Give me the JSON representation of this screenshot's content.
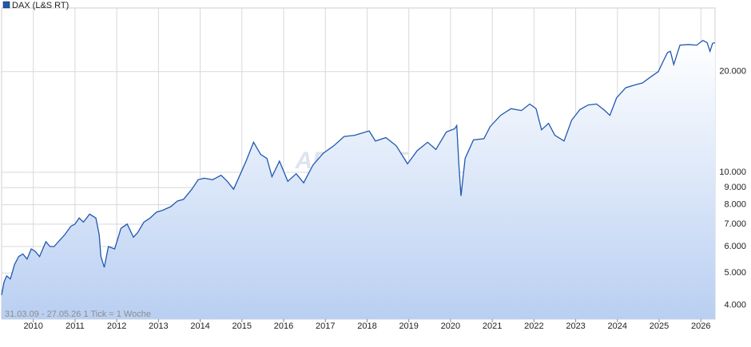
{
  "chart_data": {
    "type": "line",
    "legend": "DAX (L&S RT)",
    "watermark": "ARIVA.DE",
    "footnote": "31.03.09 - 27.05.26   1 Tick = 1 Woche",
    "log_scale": true,
    "grid": true,
    "legend_position": "top-left",
    "xlim": [
      2009.24,
      2026.34
    ],
    "xticks": [
      2010,
      2011,
      2012,
      2013,
      2014,
      2015,
      2016,
      2017,
      2018,
      2019,
      2020,
      2021,
      2022,
      2023,
      2024,
      2025,
      2026
    ],
    "ylim": [
      3640,
      31000
    ],
    "yticks": [
      {
        "value": 4000,
        "label": "4.000"
      },
      {
        "value": 5000,
        "label": "5.000"
      },
      {
        "value": 6000,
        "label": "6.000"
      },
      {
        "value": 7000,
        "label": "7.000"
      },
      {
        "value": 8000,
        "label": "8.000"
      },
      {
        "value": 9000,
        "label": "9.000"
      },
      {
        "value": 10000,
        "label": "10.000"
      },
      {
        "value": 20000,
        "label": "20.000"
      }
    ],
    "series": [
      {
        "name": "DAX (L&S RT)",
        "color": "#2058b0",
        "x": [
          2009.24,
          2009.3,
          2009.36,
          2009.45,
          2009.55,
          2009.65,
          2009.75,
          2009.85,
          2009.95,
          2010.05,
          2010.15,
          2010.3,
          2010.4,
          2010.5,
          2010.6,
          2010.75,
          2010.9,
          2011.0,
          2011.1,
          2011.2,
          2011.35,
          2011.5,
          2011.58,
          2011.62,
          2011.7,
          2011.8,
          2011.95,
          2012.1,
          2012.25,
          2012.4,
          2012.5,
          2012.65,
          2012.8,
          2012.95,
          2013.1,
          2013.3,
          2013.45,
          2013.6,
          2013.8,
          2013.95,
          2014.1,
          2014.3,
          2014.5,
          2014.65,
          2014.8,
          2014.95,
          2015.1,
          2015.28,
          2015.45,
          2015.6,
          2015.72,
          2015.9,
          2016.1,
          2016.3,
          2016.48,
          2016.7,
          2016.95,
          2017.2,
          2017.45,
          2017.7,
          2018.05,
          2018.2,
          2018.45,
          2018.7,
          2018.97,
          2019.2,
          2019.45,
          2019.65,
          2019.9,
          2020.1,
          2020.15,
          2020.2,
          2020.25,
          2020.35,
          2020.55,
          2020.8,
          2020.95,
          2021.2,
          2021.45,
          2021.7,
          2021.9,
          2022.05,
          2022.18,
          2022.35,
          2022.5,
          2022.72,
          2022.9,
          2023.1,
          2023.3,
          2023.5,
          2023.7,
          2023.82,
          2023.98,
          2024.2,
          2024.45,
          2024.6,
          2024.8,
          2024.98,
          2025.1,
          2025.2,
          2025.27,
          2025.35,
          2025.5,
          2025.7,
          2025.9,
          2026.05,
          2026.15,
          2026.22,
          2026.28,
          2026.34
        ],
        "values": [
          4300,
          4700,
          4900,
          4800,
          5300,
          5600,
          5700,
          5500,
          5900,
          5800,
          5600,
          6200,
          6000,
          6000,
          6200,
          6500,
          6900,
          7000,
          7300,
          7100,
          7500,
          7300,
          6500,
          5600,
          5200,
          6000,
          5900,
          6800,
          7000,
          6400,
          6600,
          7100,
          7300,
          7600,
          7700,
          7900,
          8200,
          8300,
          8900,
          9500,
          9600,
          9500,
          9800,
          9400,
          8900,
          9800,
          10800,
          12300,
          11300,
          11000,
          9700,
          10800,
          9400,
          9900,
          9300,
          10500,
          11400,
          12000,
          12800,
          12900,
          13300,
          12400,
          12700,
          12000,
          10600,
          11600,
          12300,
          11700,
          13200,
          13500,
          13800,
          10500,
          8500,
          11000,
          12500,
          12600,
          13700,
          14800,
          15500,
          15300,
          16000,
          15500,
          13400,
          14000,
          12900,
          12400,
          14300,
          15400,
          15900,
          16000,
          15300,
          14800,
          16700,
          17900,
          18300,
          18500,
          19300,
          20000,
          21500,
          22800,
          23000,
          21000,
          24000,
          24100,
          24000,
          24800,
          24400,
          23000,
          24300,
          24400
        ]
      }
    ]
  }
}
